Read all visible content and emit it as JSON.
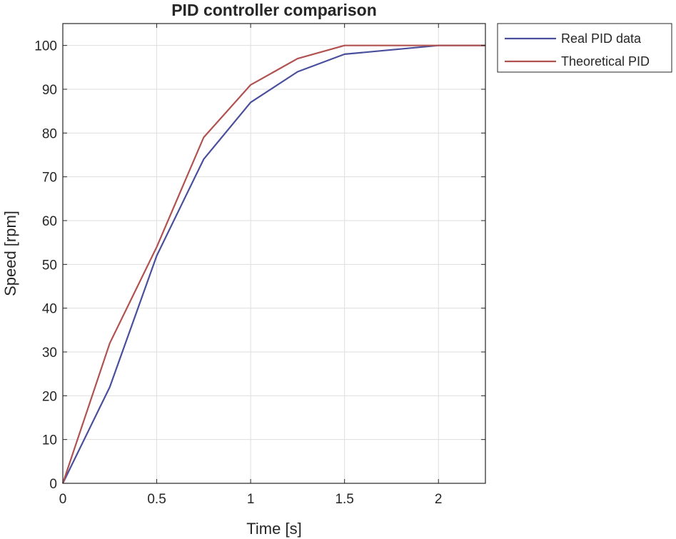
{
  "chart_data": {
    "type": "line",
    "title": "PID controller comparison",
    "xlabel": "Time [s]",
    "ylabel": "Speed [rpm]",
    "xlim": [
      0,
      2.25
    ],
    "ylim": [
      0,
      105
    ],
    "xticks": [
      0,
      0.5,
      1,
      1.5,
      2
    ],
    "xtick_labels": [
      "0",
      "0.5",
      "1",
      "1.5",
      "2"
    ],
    "yticks": [
      0,
      10,
      20,
      30,
      40,
      50,
      60,
      70,
      80,
      90,
      100
    ],
    "ytick_labels": [
      "0",
      "10",
      "20",
      "30",
      "40",
      "50",
      "60",
      "70",
      "80",
      "90",
      "100"
    ],
    "grid": true,
    "legend_position": "outside top-right",
    "series": [
      {
        "name": "Real PID data",
        "color": "#4a4f9c",
        "x": [
          0,
          0.25,
          0.5,
          0.75,
          1,
          1.25,
          1.5,
          1.75,
          2,
          2.25
        ],
        "y": [
          0,
          22,
          52,
          74,
          87,
          94,
          98,
          99,
          100,
          100
        ]
      },
      {
        "name": "Theoretical PID",
        "color": "#b0524f",
        "x": [
          0,
          0.25,
          0.5,
          0.75,
          1,
          1.25,
          1.5,
          1.75,
          2,
          2.25
        ],
        "y": [
          0,
          32,
          54,
          79,
          91,
          97,
          100,
          100,
          100,
          100
        ]
      }
    ]
  }
}
